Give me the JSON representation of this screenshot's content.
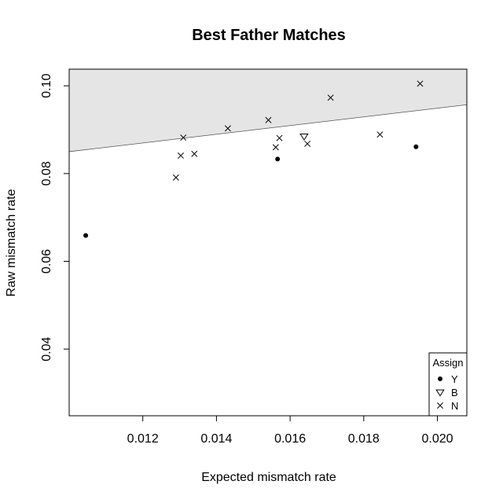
{
  "chart_data": {
    "type": "scatter",
    "title": "Best Father Matches",
    "xlabel": "Expected mismatch rate",
    "ylabel": "Raw mismatch rate",
    "xlim": [
      0.01,
      0.0208
    ],
    "ylim": [
      0.0248,
      0.1038
    ],
    "x_ticks": [
      0.012,
      0.014,
      0.016,
      0.018,
      0.02
    ],
    "x_tick_labels": [
      "0.012",
      "0.014",
      "0.016",
      "0.018",
      "0.020"
    ],
    "y_ticks": [
      0.04,
      0.06,
      0.08,
      0.1
    ],
    "y_tick_labels": [
      "0.04",
      "0.06",
      "0.08",
      "0.10"
    ],
    "grid": false,
    "shaded_region": {
      "description": "region above threshold line",
      "line": [
        [
          0.01,
          0.085
        ],
        [
          0.0208,
          0.0957
        ]
      ],
      "color": "#e5e5e5"
    },
    "legend": {
      "title": "Assign",
      "placement": "bottom-right",
      "entries": [
        {
          "label": "Y",
          "marker": "filled-circle"
        },
        {
          "label": "B",
          "marker": "open-triangle-down"
        },
        {
          "label": "N",
          "marker": "cross"
        }
      ]
    },
    "series": [
      {
        "name": "Y",
        "marker": "filled-circle",
        "points": [
          {
            "x": 0.01045,
            "y": 0.0659
          },
          {
            "x": 0.01566,
            "y": 0.0833
          },
          {
            "x": 0.01942,
            "y": 0.0861
          }
        ]
      },
      {
        "name": "B",
        "marker": "open-triangle-down",
        "points": [
          {
            "x": 0.01638,
            "y": 0.0885
          }
        ]
      },
      {
        "name": "N",
        "marker": "cross",
        "points": [
          {
            "x": 0.0129,
            "y": 0.0791
          },
          {
            "x": 0.01303,
            "y": 0.0841
          },
          {
            "x": 0.0131,
            "y": 0.0882
          },
          {
            "x": 0.0134,
            "y": 0.0845
          },
          {
            "x": 0.01431,
            "y": 0.0903
          },
          {
            "x": 0.01541,
            "y": 0.0922
          },
          {
            "x": 0.01561,
            "y": 0.086
          },
          {
            "x": 0.01571,
            "y": 0.0881
          },
          {
            "x": 0.01647,
            "y": 0.0868
          },
          {
            "x": 0.0171,
            "y": 0.0973
          },
          {
            "x": 0.01844,
            "y": 0.0889
          },
          {
            "x": 0.01953,
            "y": 0.1005
          }
        ]
      }
    ]
  }
}
